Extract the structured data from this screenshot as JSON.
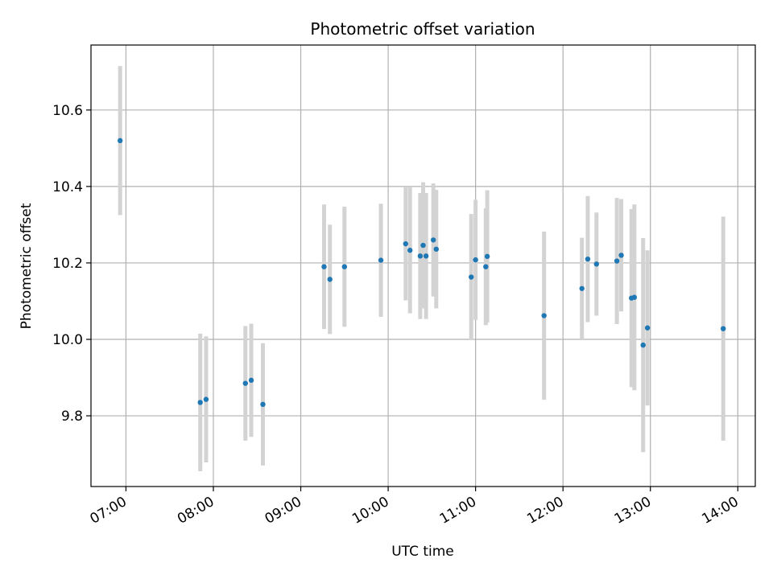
{
  "chart_data": {
    "type": "scatter",
    "title": "Photometric offset variation",
    "xlabel": "UTC time",
    "ylabel": "Photometric offset",
    "x_ticks": [
      "07:00",
      "08:00",
      "09:00",
      "10:00",
      "11:00",
      "12:00",
      "13:00",
      "14:00"
    ],
    "y_ticks": [
      "9.8",
      "10.0",
      "10.2",
      "10.4",
      "10.6"
    ],
    "xlim": [
      "06:36",
      "14:12"
    ],
    "ylim": [
      9.615,
      10.77
    ],
    "grid": true,
    "errorbar_color": "#d3d3d3",
    "point_color": "#1f77b4",
    "points": [
      {
        "x": "06:56",
        "y": 10.52,
        "err": 0.195
      },
      {
        "x": "07:51",
        "y": 9.835,
        "err": 0.18
      },
      {
        "x": "07:55",
        "y": 9.843,
        "err": 0.165
      },
      {
        "x": "08:22",
        "y": 9.885,
        "err": 0.15
      },
      {
        "x": "08:26",
        "y": 9.893,
        "err": 0.148
      },
      {
        "x": "08:34",
        "y": 9.83,
        "err": 0.16
      },
      {
        "x": "09:16",
        "y": 10.19,
        "err": 0.163
      },
      {
        "x": "09:20",
        "y": 10.157,
        "err": 0.143
      },
      {
        "x": "09:30",
        "y": 10.19,
        "err": 0.157
      },
      {
        "x": "09:55",
        "y": 10.207,
        "err": 0.148
      },
      {
        "x": "10:12",
        "y": 10.25,
        "err": 0.148
      },
      {
        "x": "10:15",
        "y": 10.233,
        "err": 0.165
      },
      {
        "x": "10:22",
        "y": 10.218,
        "err": 0.165
      },
      {
        "x": "10:24",
        "y": 10.246,
        "err": 0.165
      },
      {
        "x": "10:26",
        "y": 10.218,
        "err": 0.165
      },
      {
        "x": "10:31",
        "y": 10.26,
        "err": 0.148
      },
      {
        "x": "10:33",
        "y": 10.236,
        "err": 0.155
      },
      {
        "x": "10:57",
        "y": 10.163,
        "err": 0.165
      },
      {
        "x": "11:00",
        "y": 10.208,
        "err": 0.157
      },
      {
        "x": "11:07",
        "y": 10.19,
        "err": 0.153
      },
      {
        "x": "11:08",
        "y": 10.217,
        "err": 0.173
      },
      {
        "x": "11:47",
        "y": 10.062,
        "err": 0.22
      },
      {
        "x": "12:13",
        "y": 10.133,
        "err": 0.133
      },
      {
        "x": "12:17",
        "y": 10.21,
        "err": 0.165
      },
      {
        "x": "12:23",
        "y": 10.197,
        "err": 0.135
      },
      {
        "x": "12:37",
        "y": 10.205,
        "err": 0.165
      },
      {
        "x": "12:40",
        "y": 10.22,
        "err": 0.147
      },
      {
        "x": "12:47",
        "y": 10.108,
        "err": 0.233
      },
      {
        "x": "12:49",
        "y": 10.11,
        "err": 0.243
      },
      {
        "x": "12:55",
        "y": 9.985,
        "err": 0.28
      },
      {
        "x": "12:58",
        "y": 10.03,
        "err": 0.203
      },
      {
        "x": "13:50",
        "y": 10.028,
        "err": 0.293
      }
    ]
  }
}
